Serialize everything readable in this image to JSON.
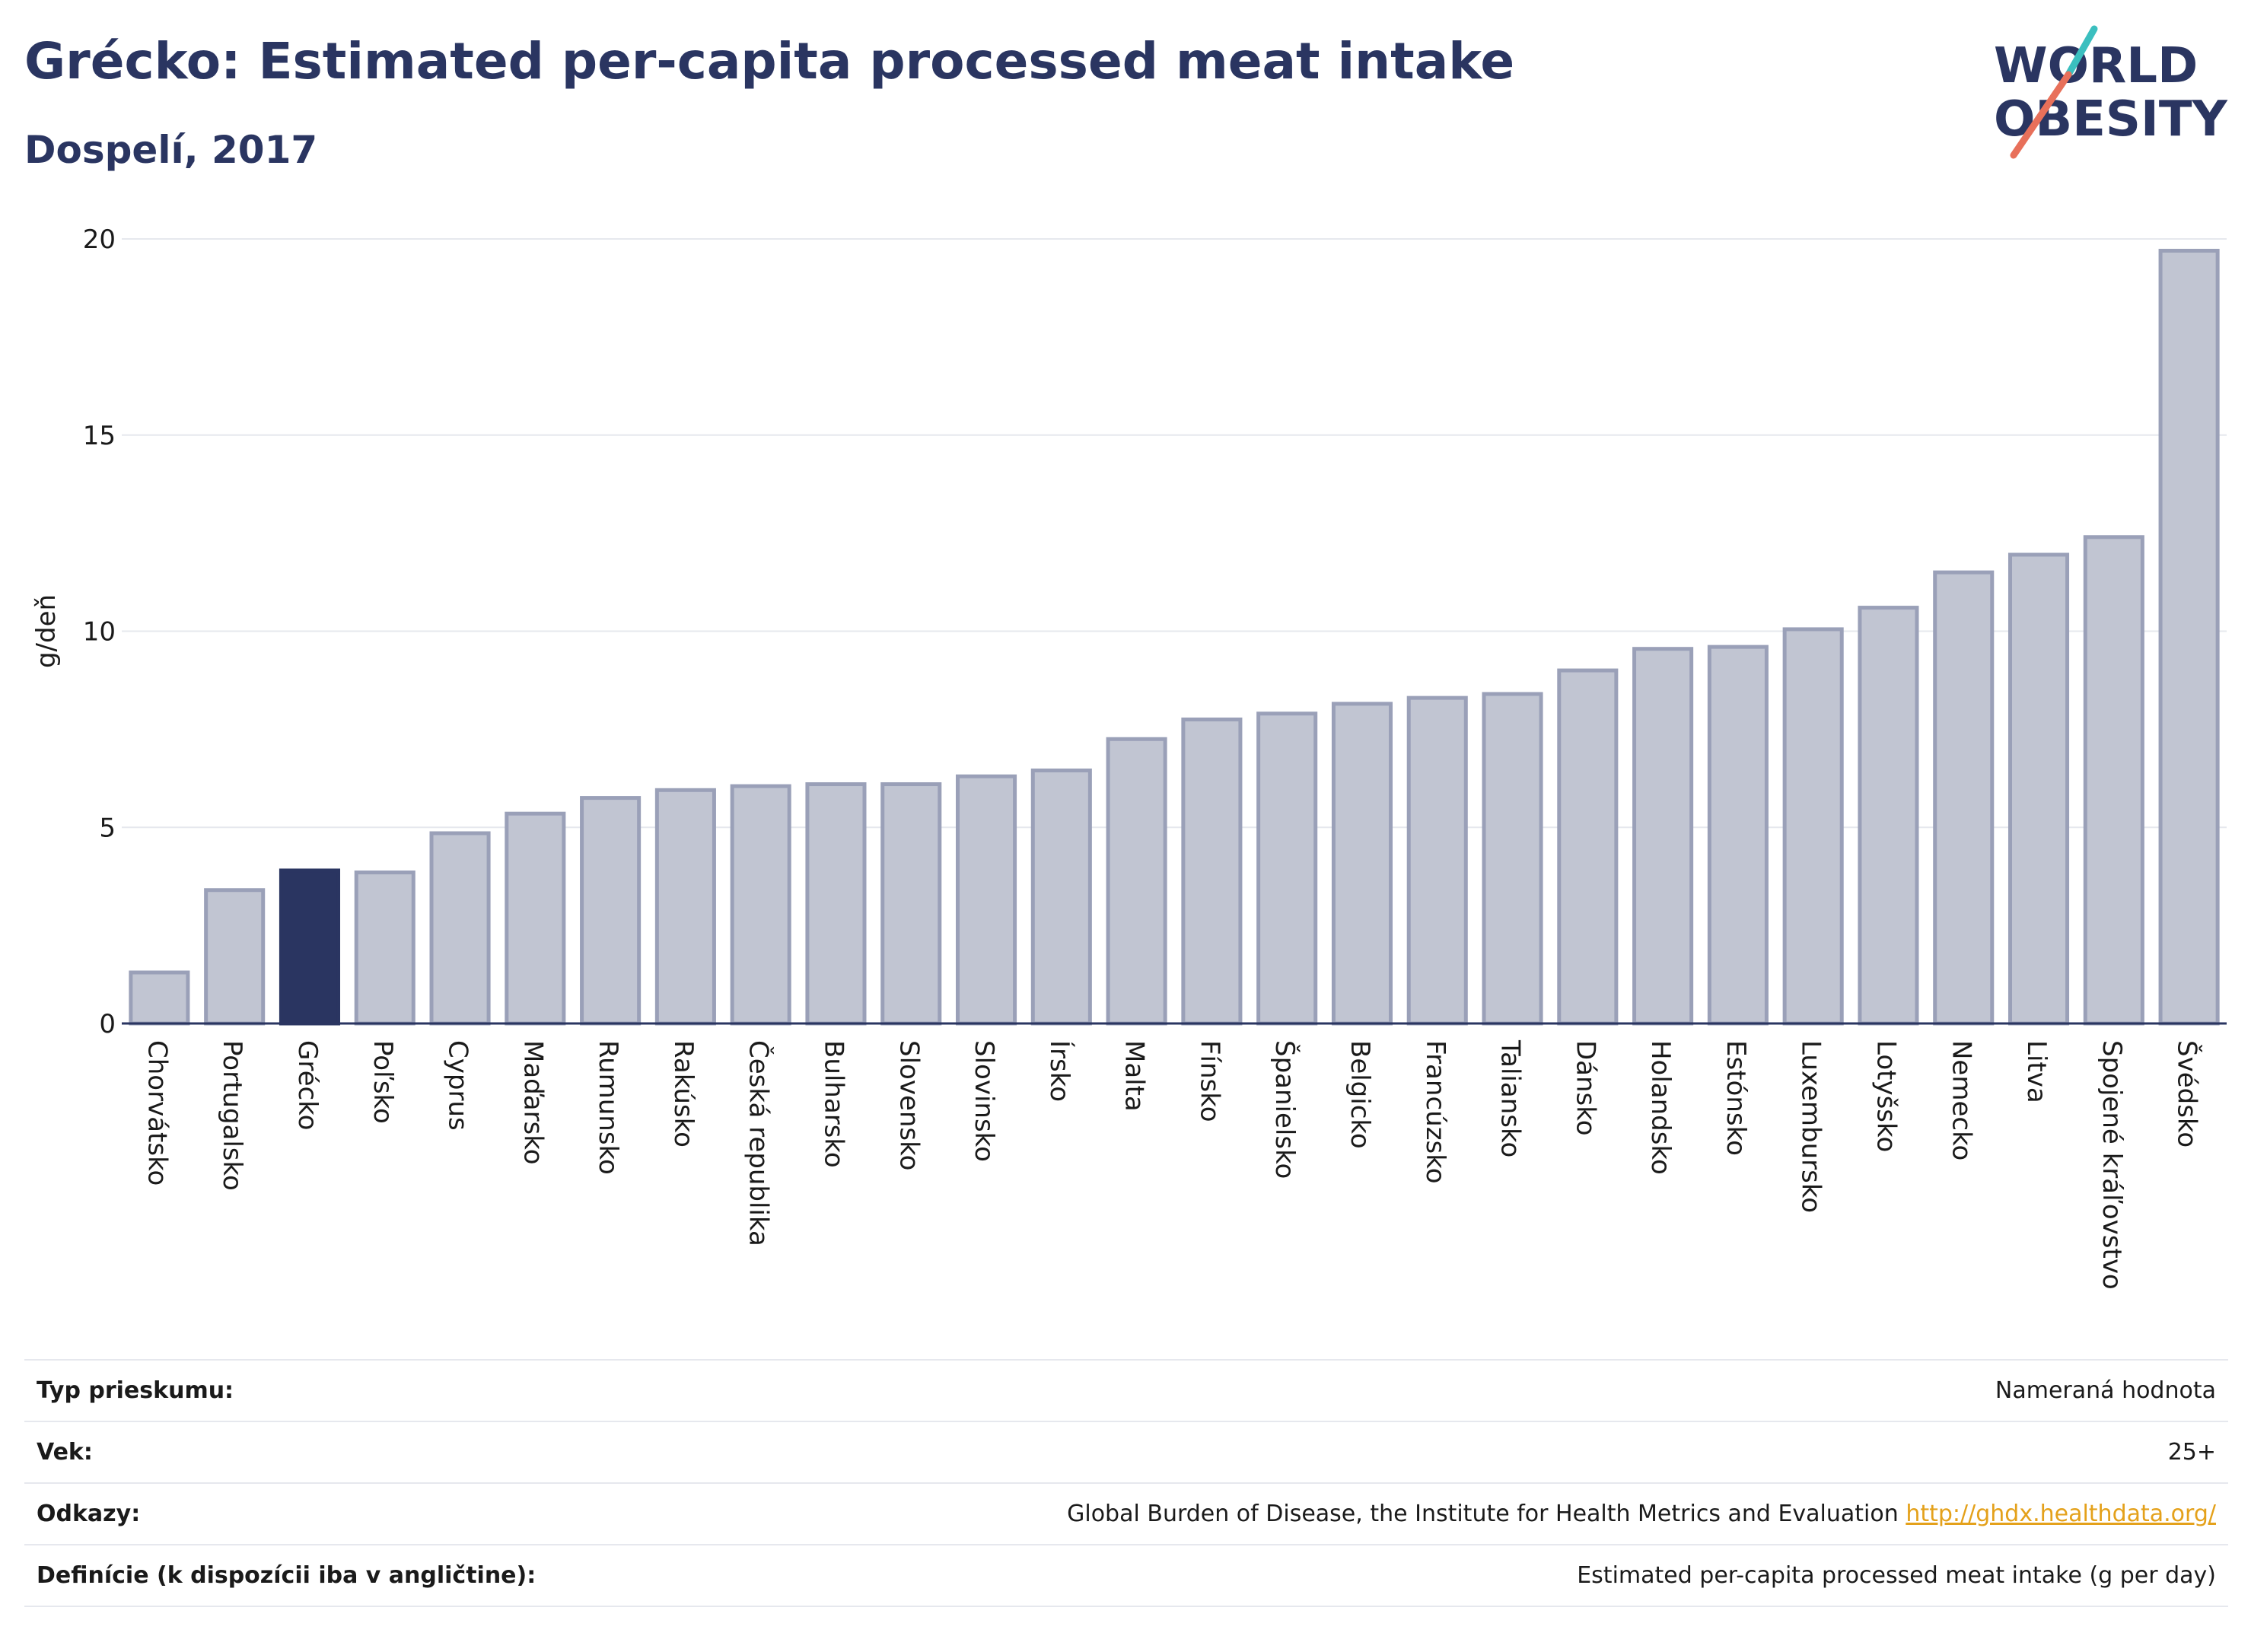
{
  "header": {
    "title": "Grécko: Estimated per-capita processed meat intake",
    "subtitle": "Dospelí, 2017",
    "logo_line1": "WORLD",
    "logo_line2": "OBESITY"
  },
  "colors": {
    "title": "#2a3561",
    "bar_default": "#c1c5d2",
    "bar_default_stroke": "#9aa0b8",
    "bar_highlight": "#2a3561",
    "gridline": "#e6e8ee",
    "link": "#e4a11b",
    "logo_slash_teal": "#3bbfbf",
    "logo_slash_coral": "#e8705a"
  },
  "chart_data": {
    "type": "bar",
    "ylabel": "g/deň",
    "ylim": [
      0,
      20
    ],
    "yticks": [
      0,
      5,
      10,
      15,
      20
    ],
    "grid": true,
    "highlight": "Grécko",
    "categories": [
      "Chorvátsko",
      "Portugalsko",
      "Grécko",
      "Poľsko",
      "Cyprus",
      "Maďarsko",
      "Rumunsko",
      "Rakúsko",
      "Česká republika",
      "Bulharsko",
      "Slovensko",
      "Slovinsko",
      "Írsko",
      "Malta",
      "Fínsko",
      "Španielsko",
      "Belgicko",
      "Francúzsko",
      "Taliansko",
      "Dánsko",
      "Holandsko",
      "Estónsko",
      "Luxembursko",
      "Lotyšsko",
      "Nemecko",
      "Litva",
      "Spojené kráľovstvo",
      "Švédsko"
    ],
    "values": [
      1.3,
      3.4,
      3.9,
      3.85,
      4.85,
      5.35,
      5.75,
      5.95,
      6.05,
      6.1,
      6.1,
      6.3,
      6.45,
      7.25,
      7.75,
      7.9,
      8.15,
      8.3,
      8.4,
      9.0,
      9.55,
      9.6,
      10.05,
      10.6,
      11.5,
      11.95,
      12.4,
      19.7
    ]
  },
  "info_table": [
    {
      "key": "Typ prieskumu:",
      "value": "Nameraná hodnota"
    },
    {
      "key": "Vek:",
      "value": "25+"
    },
    {
      "key": "Odkazy:",
      "value": "Global Burden of Disease, the Institute for Health Metrics and Evaluation",
      "link": "http://ghdx.healthdata.org/"
    },
    {
      "key": "Definície (k dispozícii iba v angličtine):",
      "value": "Estimated per-capita processed meat intake (g per day)"
    }
  ]
}
